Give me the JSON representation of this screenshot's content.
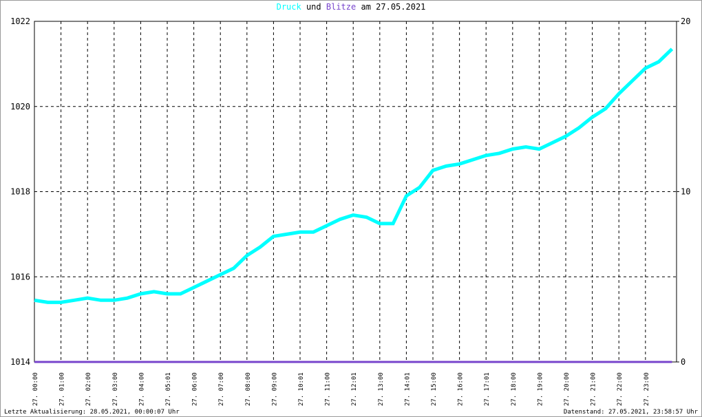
{
  "chart_data": {
    "type": "line",
    "title_parts": [
      "Druck",
      "und",
      "Blitze",
      "am 27.05.2021"
    ],
    "footer_left": "Letzte Aktualisierung: 28.05.2021, 00:00:07 Uhr",
    "footer_right": "Datenstand: 27.05.2021, 23:58:57 Uhr",
    "x": [
      0,
      0.5,
      1,
      1.5,
      2,
      2.5,
      3,
      3.5,
      4,
      4.5,
      5,
      5.5,
      6,
      6.5,
      7,
      7.5,
      8,
      8.5,
      9,
      9.5,
      10,
      10.5,
      11,
      11.5,
      12,
      12.5,
      13,
      13.5,
      14,
      14.5,
      15,
      15.5,
      16,
      16.5,
      17,
      17.5,
      18,
      18.5,
      19,
      19.5,
      20,
      20.5,
      21,
      21.5,
      22,
      22.5,
      23,
      23.5,
      24
    ],
    "xlim": [
      0,
      24.17
    ],
    "xticks": [
      {
        "value": 0,
        "label": "27. 00:00"
      },
      {
        "value": 1,
        "label": "27. 01:00"
      },
      {
        "value": 2,
        "label": "27. 02:00"
      },
      {
        "value": 3,
        "label": "27. 03:00"
      },
      {
        "value": 4,
        "label": "27. 04:00"
      },
      {
        "value": 5,
        "label": "27. 05:01"
      },
      {
        "value": 6,
        "label": "27. 06:00"
      },
      {
        "value": 7,
        "label": "27. 07:00"
      },
      {
        "value": 8,
        "label": "27. 08:00"
      },
      {
        "value": 9,
        "label": "27. 09:00"
      },
      {
        "value": 10,
        "label": "27. 10:01"
      },
      {
        "value": 11,
        "label": "27. 11:00"
      },
      {
        "value": 12,
        "label": "27. 12:01"
      },
      {
        "value": 13,
        "label": "27. 13:00"
      },
      {
        "value": 14,
        "label": "27. 14:01"
      },
      {
        "value": 15,
        "label": "27. 15:00"
      },
      {
        "value": 16,
        "label": "27. 16:00"
      },
      {
        "value": 17,
        "label": "27. 17:01"
      },
      {
        "value": 18,
        "label": "27. 18:00"
      },
      {
        "value": 19,
        "label": "27. 19:00"
      },
      {
        "value": 20,
        "label": "27. 20:00"
      },
      {
        "value": 21,
        "label": "27. 21:00"
      },
      {
        "value": 22,
        "label": "27. 22:00"
      },
      {
        "value": 23,
        "label": "27. 23:00"
      }
    ],
    "ylim": [
      1014,
      1022
    ],
    "yticks": [
      1014,
      1016,
      1018,
      1020,
      1022
    ],
    "y2lim": [
      0,
      20
    ],
    "y2ticks": [
      0,
      10,
      20
    ],
    "grid": true,
    "series": [
      {
        "name": "Druck",
        "color": "#00ffff",
        "values": [
          1015.45,
          1015.4,
          1015.4,
          1015.45,
          1015.5,
          1015.45,
          1015.45,
          1015.5,
          1015.6,
          1015.65,
          1015.6,
          1015.6,
          1015.75,
          1015.9,
          1016.05,
          1016.2,
          1016.5,
          1016.7,
          1016.95,
          1017.0,
          1017.05,
          1017.05,
          1017.2,
          1017.35,
          1017.45,
          1017.4,
          1017.25,
          1017.25,
          1017.9,
          1018.1,
          1018.5,
          1018.6,
          1018.65,
          1018.75,
          1018.85,
          1018.9,
          1019.0,
          1019.05,
          1019.0,
          1019.15,
          1019.3,
          1019.5,
          1019.75,
          1019.95,
          1020.3,
          1020.6,
          1020.9,
          1021.05,
          1021.35
        ]
      },
      {
        "name": "Blitze",
        "color": "#7744cc",
        "axis": "y2",
        "values": [
          0,
          0,
          0,
          0,
          0,
          0,
          0,
          0,
          0,
          0,
          0,
          0,
          0,
          0,
          0,
          0,
          0,
          0,
          0,
          0,
          0,
          0,
          0,
          0,
          0,
          0,
          0,
          0,
          0,
          0,
          0,
          0,
          0,
          0,
          0,
          0,
          0,
          0,
          0,
          0,
          0,
          0,
          0,
          0,
          0,
          0,
          0,
          0,
          0
        ]
      }
    ]
  }
}
